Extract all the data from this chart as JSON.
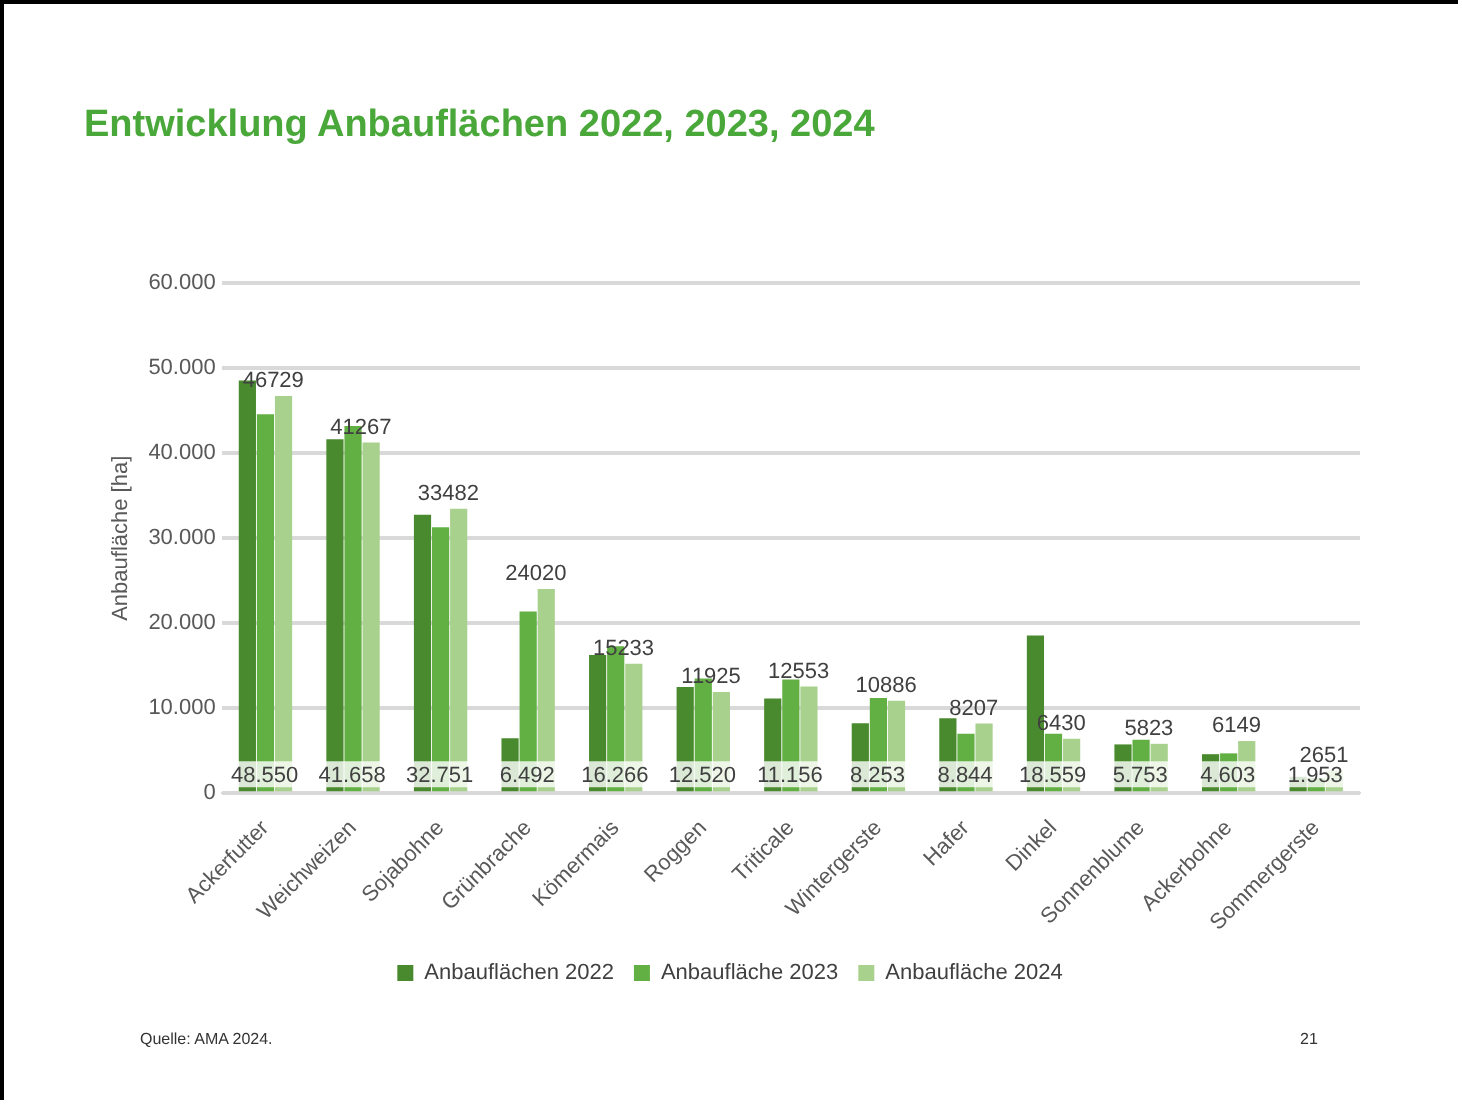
{
  "chart_data": {
    "type": "bar",
    "title": "Entwicklung Anbauflächen 2022, 2023, 2024",
    "ylabel": "Anbaufläche [ha]",
    "categories": [
      "Ackerfutter",
      "Weichweizen",
      "Sojabohne",
      "Grünbrache",
      "Kömermais",
      "Roggen",
      "Triticale",
      "Wintergerste",
      "Hafer",
      "Dinkel",
      "Sonnenblume",
      "Ackerbohne",
      "Sommergerste"
    ],
    "series": [
      {
        "name": "Anbauflächen 2022",
        "color": "#4a8a2e",
        "values": [
          48550,
          41658,
          32751,
          6492,
          16266,
          12520,
          11156,
          8253,
          8844,
          18559,
          5753,
          4603,
          1953
        ],
        "value_labels": [
          "48.550",
          "41.658",
          "32.751",
          "6.492",
          "16.266",
          "12.520",
          "11.156",
          "8.253",
          "8.844",
          "18.559",
          "5.753",
          "4.603",
          "1.953"
        ]
      },
      {
        "name": "Anbaufläche 2023",
        "color": "#62b043",
        "values": [
          44600,
          43200,
          31300,
          21400,
          17300,
          13500,
          13400,
          11200,
          7000,
          7000,
          6300,
          4700,
          1800
        ]
      },
      {
        "name": "Anbaufläche 2024",
        "color": "#a9d18e",
        "values": [
          46729,
          41267,
          33482,
          24020,
          15233,
          11925,
          12553,
          10886,
          8207,
          6430,
          5823,
          6149,
          2651
        ],
        "data_labels": true
      }
    ],
    "ylim": [
      0,
      60000
    ],
    "yticks": [
      {
        "value": 0,
        "label": "0"
      },
      {
        "value": 10000,
        "label": "10.000"
      },
      {
        "value": 20000,
        "label": "20.000"
      },
      {
        "value": 30000,
        "label": "30.000"
      },
      {
        "value": 40000,
        "label": "40.000"
      },
      {
        "value": 50000,
        "label": "50.000"
      },
      {
        "value": 60000,
        "label": "60.000"
      }
    ],
    "grid": "y",
    "legend": "bottom",
    "annotations": [
      "Quelle: AMA 2024.",
      "21"
    ]
  }
}
